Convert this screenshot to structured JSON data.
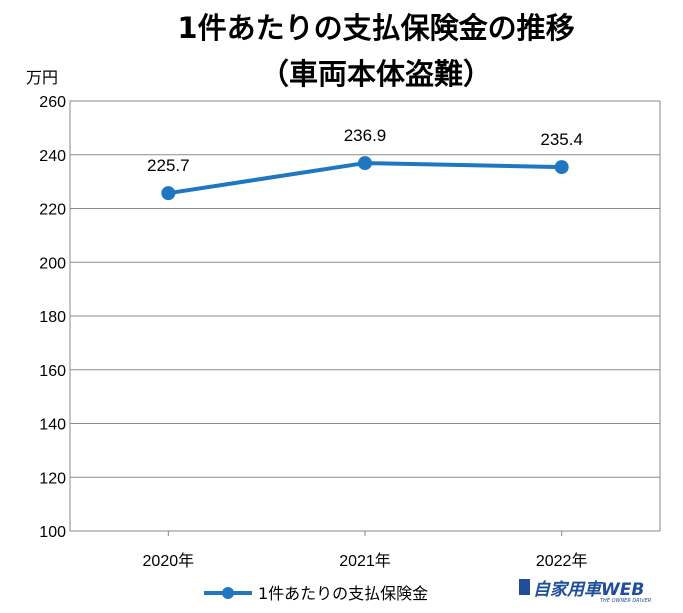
{
  "chart_data": {
    "type": "line",
    "title_line1": "1件あたりの支払保険金の推移",
    "title_line2": "（車両本体盗難）",
    "unit": "万円",
    "categories": [
      "2020年",
      "2021年",
      "2022年"
    ],
    "series": [
      {
        "name": "1件あたりの支払保険金",
        "values": [
          225.7,
          236.9,
          235.4
        ],
        "color": "#1f77c0"
      }
    ],
    "data_labels": [
      "225.7",
      "236.9",
      "235.4"
    ],
    "ylim": [
      100,
      260
    ],
    "yticks": [
      100,
      120,
      140,
      160,
      180,
      200,
      220,
      240,
      260
    ],
    "grid": true,
    "legend_position": "bottom"
  },
  "watermark": {
    "text": "自家用車WEB",
    "subtext": "THE OWNER DRIVER",
    "color": "#1f4e9a"
  }
}
